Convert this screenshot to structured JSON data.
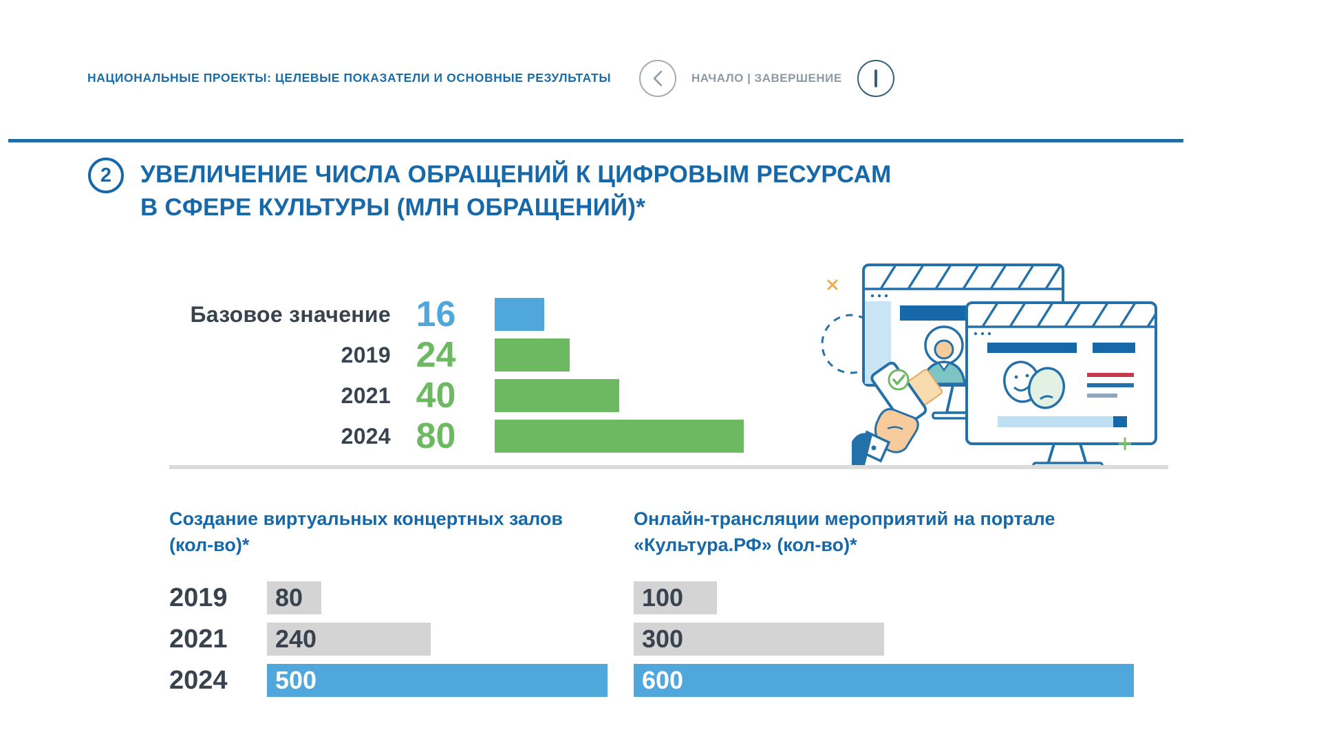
{
  "header": {
    "title": "НАЦИОНАЛЬНЫЕ ПРОЕКТЫ: ЦЕЛЕВЫЕ ПОКАЗАТЕЛИ И ОСНОВНЫЕ РЕЗУЛЬТАТЫ",
    "nav_label": "НАЧАЛО | ЗАВЕРШЕНИЕ"
  },
  "section": {
    "number": "2",
    "title_line1": "УВЕЛИЧЕНИЕ ЧИСЛА ОБРАЩЕНИЙ К ЦИФРОВЫМ РЕСУРСАМ",
    "title_line2": "В СФЕРЕ КУЛЬТУРЫ (МЛН ОБРАЩЕНИЙ)*"
  },
  "colors": {
    "accent_blue": "#1768A9",
    "divider_blue": "#1F6FA4",
    "bar_blue": "#4FA7DC",
    "bar_green": "#6DB962",
    "bar_gray": "#D4D4D4",
    "dark_text": "#39434F",
    "nav_gray": "#8D99A5"
  },
  "chart_data": [
    {
      "type": "bar",
      "orientation": "horizontal",
      "title": "УВЕЛИЧЕНИЕ ЧИСЛА ОБРАЩЕНИЙ К ЦИФРОВЫМ РЕСУРСАМ В СФЕРЕ КУЛЬТУРЫ (МЛН ОБРАЩЕНИЙ)*",
      "categories": [
        "Базовое значение",
        "2019",
        "2021",
        "2024"
      ],
      "values": [
        16,
        24,
        40,
        80
      ],
      "bar_colors": [
        "#4FA7DC",
        "#6DB962",
        "#6DB962",
        "#6DB962"
      ],
      "value_colors": [
        "#4FA7DC",
        "#6DB962",
        "#6DB962",
        "#6DB962"
      ],
      "xlim": [
        0,
        80
      ],
      "grid": false,
      "legend": false
    },
    {
      "type": "bar",
      "orientation": "horizontal",
      "title_line1": "Создание виртуальных концертных залов",
      "title_line2": "(кол-во)*",
      "categories": [
        "2019",
        "2021",
        "2024"
      ],
      "values": [
        80,
        240,
        500
      ],
      "bar_colors": [
        "#D4D4D4",
        "#D4D4D4",
        "#4FA7DC"
      ],
      "value_colors": [
        "#39434F",
        "#39434F",
        "#FFFFFF"
      ],
      "value_position": "inside-left",
      "xlim": [
        0,
        500
      ],
      "grid": false,
      "legend": false
    },
    {
      "type": "bar",
      "orientation": "horizontal",
      "title_line1": "Онлайн-трансляции мероприятий на портале",
      "title_line2": "«Культура.РФ» (кол-во)*",
      "categories": [
        "2019",
        "2021",
        "2024"
      ],
      "values": [
        100,
        300,
        600
      ],
      "bar_colors": [
        "#D4D4D4",
        "#D4D4D4",
        "#4FA7DC"
      ],
      "value_colors": [
        "#39434F",
        "#39434F",
        "#FFFFFF"
      ],
      "value_position": "inside-left",
      "xlim": [
        0,
        600
      ],
      "grid": false,
      "legend": false
    }
  ],
  "illustration": {
    "name": "monitors-theatre-masks-hand-with-phone",
    "accents": [
      "x-mark",
      "plus-mark",
      "dashed-circle",
      "check-mark"
    ]
  }
}
